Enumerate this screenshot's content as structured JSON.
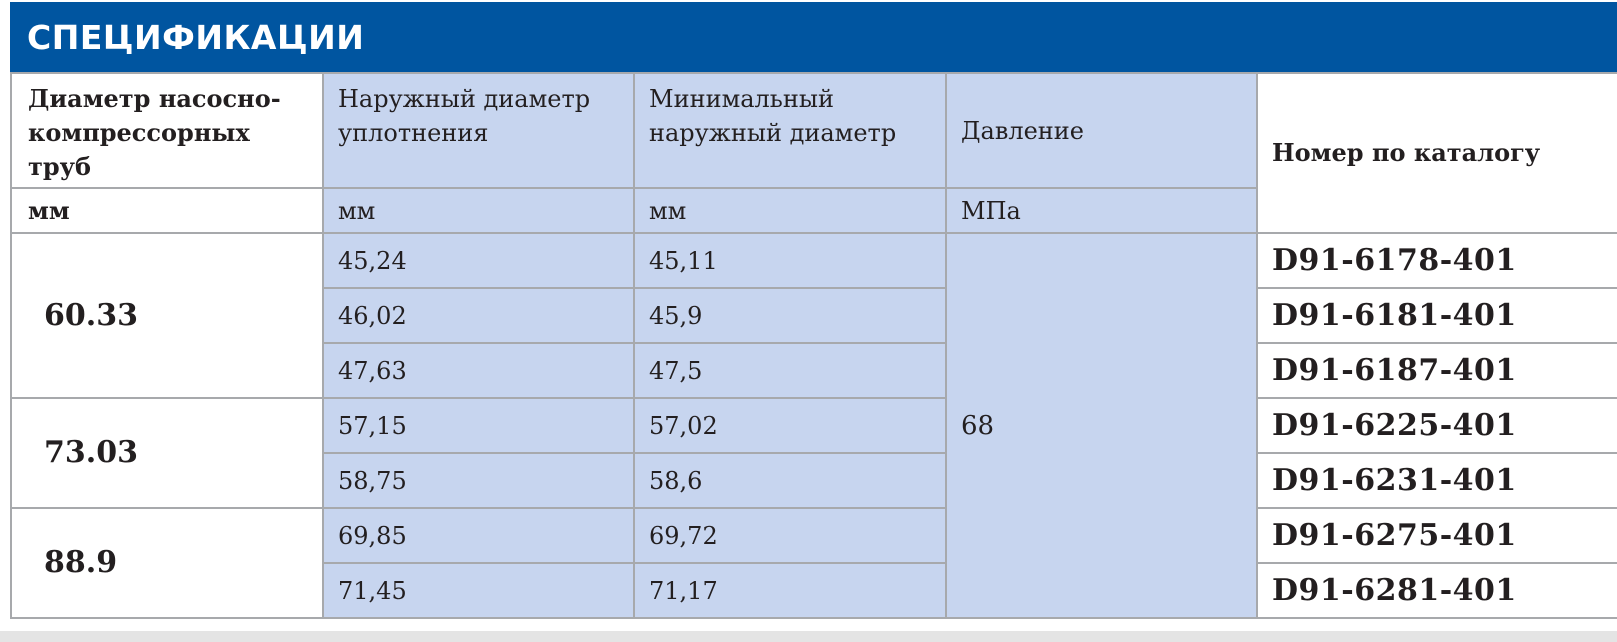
{
  "title": "СПЕЦИФИКАЦИИ",
  "headers": {
    "tubing_diameter": "Диаметр насосно-компрессорных труб",
    "seal_od": "Наружный диаметр уплотнения",
    "min_od": "Минимальный наружный диаметр",
    "pressure": "Давление",
    "catalog": "Номер по каталогу"
  },
  "units": {
    "tubing_diameter": "мм",
    "seal_od": "мм",
    "min_od": "мм",
    "pressure": "МПа"
  },
  "pressure_value": "68",
  "groups": [
    {
      "diameter": "60.33",
      "rows": [
        {
          "seal_od": "45,24",
          "min_od": "45,11",
          "catalog": "D91-6178-401"
        },
        {
          "seal_od": "46,02",
          "min_od": "45,9",
          "catalog": "D91-6181-401"
        },
        {
          "seal_od": "47,63",
          "min_od": "47,5",
          "catalog": "D91-6187-401"
        }
      ]
    },
    {
      "diameter": "73.03",
      "rows": [
        {
          "seal_od": "57,15",
          "min_od": "57,02",
          "catalog": "D91-6225-401"
        },
        {
          "seal_od": "58,75",
          "min_od": "58,6",
          "catalog": "D91-6231-401"
        }
      ]
    },
    {
      "diameter": "88.9",
      "rows": [
        {
          "seal_od": "69,85",
          "min_od": "69,72",
          "catalog": "D91-6275-401"
        },
        {
          "seal_od": "71,45",
          "min_od": "71,17",
          "catalog": "D91-6281-401"
        }
      ]
    }
  ],
  "colors": {
    "header_bg": "#0055a0",
    "cell_blue": "#c7d5ef",
    "border": "#a7a9ac"
  }
}
